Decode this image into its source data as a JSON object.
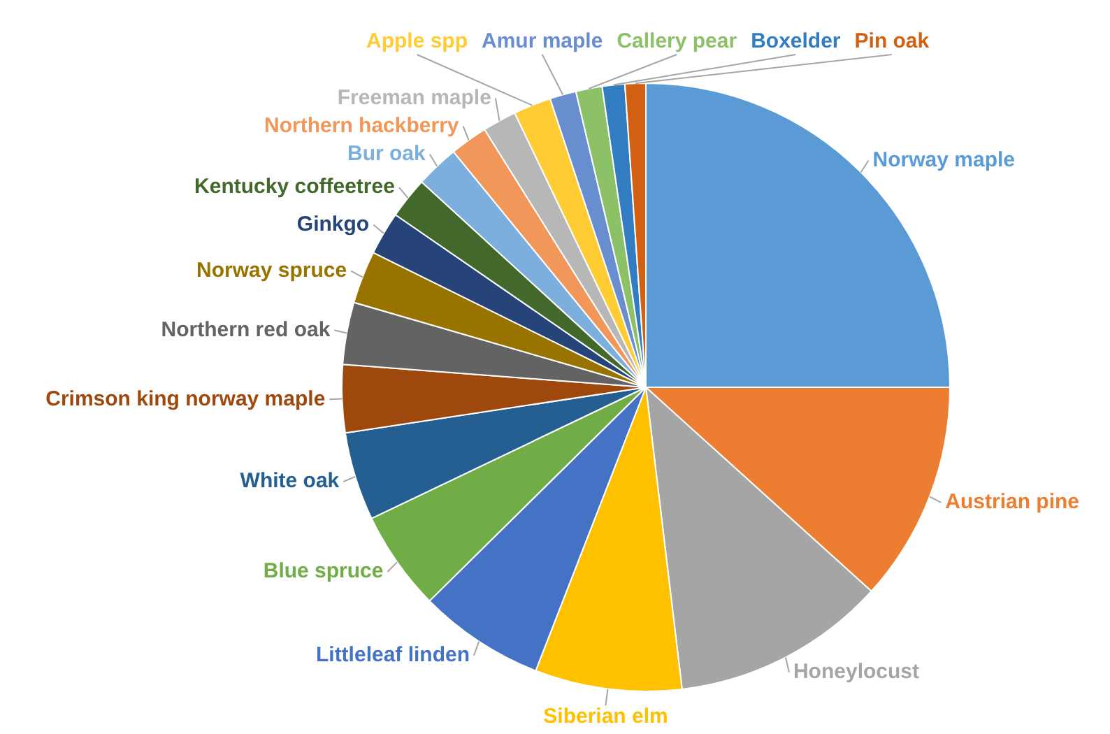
{
  "chart_data": {
    "type": "pie",
    "categories": [
      "Norway maple",
      "Austrian pine",
      "Honeylocust",
      "Siberian elm",
      "Littleleaf linden",
      "Blue spruce",
      "White oak",
      "Crimson king norway maple",
      "Northern red oak",
      "Norway spruce",
      "Ginkgo",
      "Kentucky coffeetree",
      "Bur oak",
      "Northern hackberry",
      "Freeman maple",
      "Apple spp",
      "Amur maple",
      "Callery pear",
      "Boxelder",
      "Pin oak"
    ],
    "values": [
      25,
      11.7,
      11.4,
      7.8,
      6.7,
      5.3,
      4.7,
      3.6,
      3.3,
      2.8,
      2.3,
      2.2,
      2.3,
      2,
      1.8,
      2,
      1.4,
      1.4,
      1.2,
      1.1
    ],
    "colors": [
      "#5b9bd5",
      "#ed7d31",
      "#a5a5a5",
      "#ffc000",
      "#4472c4",
      "#70ad47",
      "#255e91",
      "#9e480e",
      "#636363",
      "#997300",
      "#264478",
      "#43682b",
      "#7cafdd",
      "#f1975a",
      "#b7b7b7",
      "#ffcd33",
      "#698ed0",
      "#8cc168",
      "#327dc2",
      "#d26012"
    ]
  }
}
